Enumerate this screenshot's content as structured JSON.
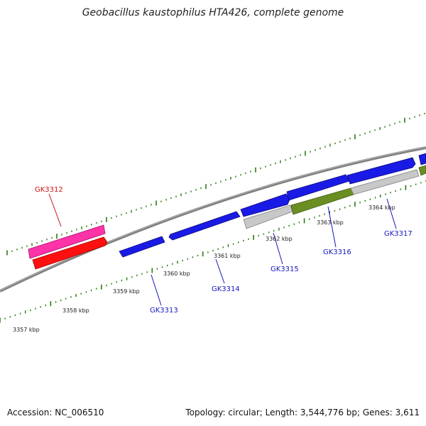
{
  "header": {
    "title": "Geobacillus kaustophilus HTA426, complete genome"
  },
  "footer": {
    "accession": "Accession: NC_006510",
    "summary": "Topology: circular; Length: 3,544,776 bp; Genes: 3,611"
  },
  "colors": {
    "backbone": "#808080",
    "tick": "#2a7a10",
    "label_red": "#d01010",
    "label_blue": "#1515c0",
    "gene_blue": "#1a1ae6",
    "gene_red": "#ff1010",
    "gene_pink": "#ff33a8",
    "gene_gray": "#c8c8c8",
    "gene_olive": "#6b8e23"
  },
  "scale_labels": [
    "3357 kbp",
    "3358 kbp",
    "3359 kbp",
    "3360 kbp",
    "3361 kbp",
    "3362 kbp",
    "3363 kbp",
    "3364 kbp"
  ],
  "genes": [
    {
      "label": "GK3312",
      "label_color": "red"
    },
    {
      "label": "GK3313",
      "label_color": "blue"
    },
    {
      "label": "GK3314",
      "label_color": "blue"
    },
    {
      "label": "GK3315",
      "label_color": "blue"
    },
    {
      "label": "GK3316",
      "label_color": "blue"
    },
    {
      "label": "GK3317",
      "label_color": "blue"
    }
  ]
}
